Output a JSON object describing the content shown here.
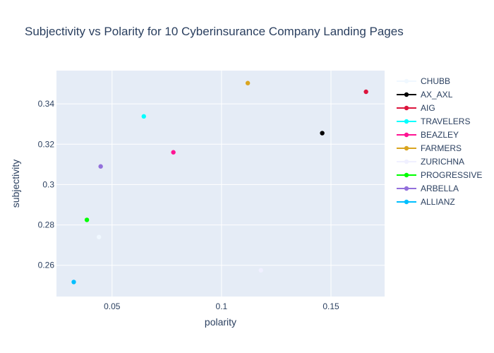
{
  "chart_data": {
    "type": "scatter",
    "title": "Subjectivity vs Polarity for 10 Cyberinsurance Company Landing Pages",
    "xlabel": "polarity",
    "ylabel": "subjectivity",
    "xlim": [
      0.0246,
      0.1745
    ],
    "ylim": [
      0.2445,
      0.3565
    ],
    "x_ticks": [
      0.05,
      0.1,
      0.15
    ],
    "x_tick_labels": [
      "0.05",
      "0.1",
      "0.15"
    ],
    "y_ticks": [
      0.26,
      0.28,
      0.3,
      0.32,
      0.34
    ],
    "y_tick_labels": [
      "0.26",
      "0.28",
      "0.3",
      "0.32",
      "0.34"
    ],
    "grid": true,
    "legend_position": "right",
    "plot_background": "#e5ecf6",
    "series": [
      {
        "name": "CHUBB",
        "color": "#f0f8ff",
        "x": [
          0.044
        ],
        "y": [
          0.274
        ]
      },
      {
        "name": "AX_AXL",
        "color": "#000000",
        "x": [
          0.146
        ],
        "y": [
          0.3255
        ]
      },
      {
        "name": "AIG",
        "color": "#dc143c",
        "x": [
          0.166
        ],
        "y": [
          0.346
        ]
      },
      {
        "name": "TRAVELERS",
        "color": "#00ffff",
        "x": [
          0.0645
        ],
        "y": [
          0.3338
        ]
      },
      {
        "name": "BEAZLEY",
        "color": "#ff1493",
        "x": [
          0.078
        ],
        "y": [
          0.316
        ]
      },
      {
        "name": "FARMERS",
        "color": "#daa520",
        "x": [
          0.112
        ],
        "y": [
          0.3503
        ]
      },
      {
        "name": "ZURICHNA",
        "color": "#f0f0ff",
        "x": [
          0.118
        ],
        "y": [
          0.2575
        ]
      },
      {
        "name": "PROGRESSIVE",
        "color": "#00ff00",
        "x": [
          0.0385
        ],
        "y": [
          0.2825
        ]
      },
      {
        "name": "ARBELLA",
        "color": "#9370db",
        "x": [
          0.0448
        ],
        "y": [
          0.309
        ]
      },
      {
        "name": "ALLIANZ",
        "color": "#00bfff",
        "x": [
          0.0325
        ],
        "y": [
          0.2517
        ]
      }
    ]
  }
}
